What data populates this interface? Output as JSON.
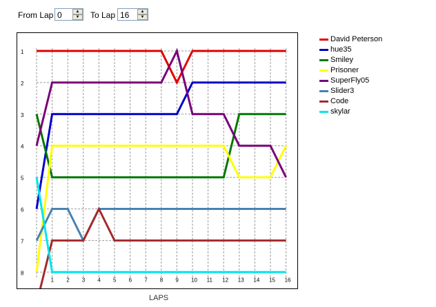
{
  "controls": {
    "from_label": "From Lap",
    "from_value": "0",
    "to_label": "To Lap",
    "to_value": "16"
  },
  "chart_data": {
    "type": "line",
    "xlabel": "LAPS",
    "ylabel": "",
    "x": [
      0,
      1,
      2,
      3,
      4,
      5,
      6,
      7,
      8,
      9,
      10,
      11,
      12,
      13,
      14,
      15,
      16
    ],
    "x_tick_labels": [
      "1",
      "2",
      "3",
      "4",
      "5",
      "6",
      "7",
      "8",
      "9",
      "10",
      "11",
      "12",
      "13",
      "14",
      "15",
      "16"
    ],
    "y_tick_labels": [
      "1",
      "2",
      "3",
      "4",
      "5",
      "6",
      "7",
      "8"
    ],
    "ylim": [
      1,
      8
    ],
    "y_inverted": true,
    "grid": true,
    "legend_position": "right",
    "series": [
      {
        "name": "David Peterson",
        "color": "#e00000",
        "values": [
          1,
          1,
          1,
          1,
          1,
          1,
          1,
          1,
          1,
          2,
          1,
          1,
          1,
          1,
          1,
          1,
          1
        ]
      },
      {
        "name": "hue35",
        "color": "#0000c8",
        "values": [
          6,
          3,
          3,
          3,
          3,
          3,
          3,
          3,
          3,
          3,
          2,
          2,
          2,
          2,
          2,
          2,
          2
        ]
      },
      {
        "name": "Smiley",
        "color": "#007800",
        "values": [
          3,
          5,
          5,
          5,
          5,
          5,
          5,
          5,
          5,
          5,
          5,
          5,
          5,
          3,
          3,
          3,
          3
        ]
      },
      {
        "name": "Prisoner",
        "color": "#ffff00",
        "values": [
          8,
          4,
          4,
          4,
          4,
          4,
          4,
          4,
          4,
          4,
          4,
          4,
          4,
          5,
          5,
          5,
          4
        ]
      },
      {
        "name": "SuperFly05",
        "color": "#780078",
        "values": [
          4,
          2,
          2,
          2,
          2,
          2,
          2,
          2,
          2,
          1,
          3,
          3,
          3,
          4,
          4,
          4,
          5
        ]
      },
      {
        "name": "Slider3",
        "color": "#4682b4",
        "values": [
          7,
          6,
          6,
          7,
          6,
          6,
          6,
          6,
          6,
          6,
          6,
          6,
          6,
          6,
          6,
          6,
          6
        ]
      },
      {
        "name": "Code",
        "color": "#a52a2a",
        "values": [
          9,
          7,
          7,
          7,
          6,
          7,
          7,
          7,
          7,
          7,
          7,
          7,
          7,
          7,
          7,
          7,
          7
        ]
      },
      {
        "name": "skylar",
        "color": "#00e5ee",
        "values": [
          5,
          8,
          8,
          8,
          8,
          8,
          8,
          8,
          8,
          8,
          8,
          8,
          8,
          8,
          8,
          8,
          8
        ]
      }
    ]
  }
}
